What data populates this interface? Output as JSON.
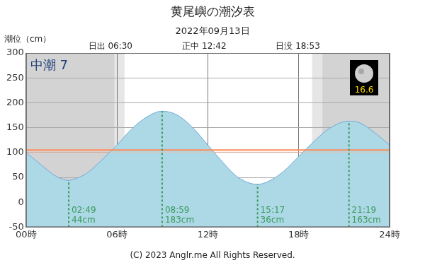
{
  "chart_data": {
    "type": "line",
    "title": "黄尾嶼の潮汐表",
    "subtitle": "2022年09月13日",
    "y_label": "潮位（cm）",
    "tide_name": "中潮 7",
    "moon_age": 16.6,
    "copyright": "(C) 2023 Anglr.me All Rights Reserved.",
    "sun": [
      {
        "label": "日出",
        "time": "06:30"
      },
      {
        "label": "正中",
        "time": "12:42"
      },
      {
        "label": "日没",
        "time": "18:53"
      }
    ],
    "x": [
      0,
      1,
      2,
      2.82,
      3,
      4,
      5,
      6,
      7,
      8,
      8.98,
      10,
      11,
      12,
      13,
      14,
      15.28,
      16,
      17,
      18,
      19,
      20,
      21.32,
      22,
      23,
      24
    ],
    "values": [
      100,
      75,
      52,
      44,
      45,
      58,
      85,
      115,
      148,
      172,
      183,
      175,
      150,
      115,
      80,
      50,
      36,
      42,
      62,
      92,
      122,
      148,
      163,
      160,
      140,
      115
    ],
    "color": "#add8e6",
    "reference_line": 105,
    "extremes": {
      "times": [
        "02:49",
        "08:59",
        "15:17",
        "21:19"
      ],
      "values": [
        44,
        183,
        36,
        163
      ],
      "value_labels": [
        "44cm",
        "183cm",
        "36cm",
        "163cm"
      ]
    },
    "xlim": [
      0,
      24
    ],
    "xticks": [
      {
        "value": 0,
        "label": "00時"
      },
      {
        "value": 6,
        "label": "06時"
      },
      {
        "value": 12,
        "label": "12時"
      },
      {
        "value": 18,
        "label": "18時"
      },
      {
        "value": 24,
        "label": "24時"
      }
    ],
    "ylim": [
      -50,
      300
    ],
    "yticks": [
      -50,
      0,
      50,
      100,
      150,
      200,
      250,
      300
    ],
    "grid": true
  }
}
